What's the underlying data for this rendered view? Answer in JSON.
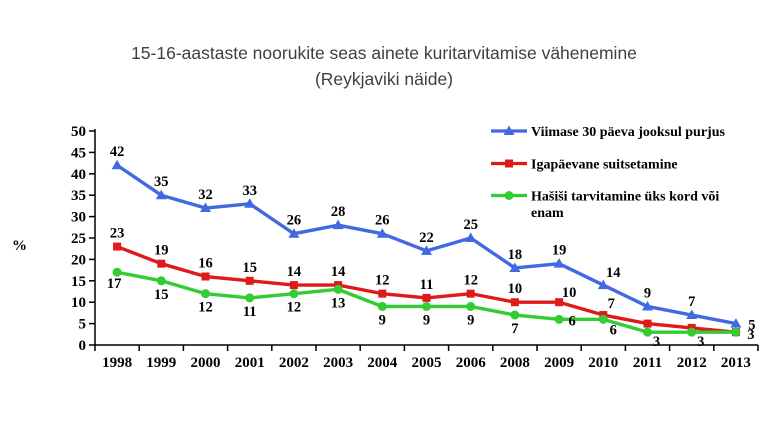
{
  "title": {
    "line1": "15-16-aastaste noorukite seas ainete kuritarvitamise vähenemine",
    "line2": "(Reykjaviki näide)"
  },
  "chart_data": {
    "type": "line",
    "title": "15-16-aastaste noorukite seas ainete kuritarvitamise vähenemine (Reykjaviki näide)",
    "xlabel": "",
    "ylabel": "%",
    "ylim": [
      0,
      50
    ],
    "ytick_step": 5,
    "grid": false,
    "legend_position": "top-right",
    "axis_color": "#000000",
    "label_color": "#000000",
    "categories": [
      "1998",
      "1999",
      "2000",
      "2001",
      "2002",
      "2003",
      "2004",
      "2005",
      "2006",
      "2008",
      "2009",
      "2010",
      "2011",
      "2012",
      "2013"
    ],
    "series": [
      {
        "name": "Viimase 30 päeva jooksul purjus",
        "legend_lines": [
          "Viimase 30 päeva jooksul purjus"
        ],
        "color": "#4169E1",
        "marker": "triangle",
        "values": [
          42,
          35,
          32,
          33,
          26,
          28,
          26,
          22,
          25,
          18,
          19,
          14,
          9,
          7,
          5
        ],
        "labels": [
          "42",
          "35",
          "32",
          "33",
          "26",
          "28",
          "26",
          "22",
          "25",
          "18",
          "19",
          "14",
          "9",
          "7",
          "5"
        ]
      },
      {
        "name": "Igapäevane suitsetamine",
        "legend_lines": [
          "Igapäevane suitsetamine"
        ],
        "color": "#E01A1A",
        "marker": "square",
        "values": [
          23,
          19,
          16,
          15,
          14,
          14,
          12,
          11,
          12,
          10,
          10,
          7,
          5,
          4,
          3
        ],
        "labels": [
          "23",
          "19",
          "16",
          "15",
          "14",
          "14",
          "12",
          "11",
          "12",
          "10",
          "10",
          "7",
          "",
          "",
          "3"
        ]
      },
      {
        "name": "Hašiši tarvitamine üks kord või enam",
        "legend_lines": [
          "Hašiši tarvitamine üks kord või",
          "enam"
        ],
        "color": "#33CC33",
        "marker": "circle",
        "values": [
          17,
          15,
          12,
          11,
          12,
          13,
          9,
          9,
          9,
          7,
          6,
          6,
          3,
          3,
          3
        ],
        "labels": [
          "17",
          "15",
          "12",
          "11",
          "12",
          "13",
          "9",
          "9",
          "9",
          "7",
          "6",
          "6",
          "3",
          "3",
          ""
        ]
      }
    ]
  }
}
